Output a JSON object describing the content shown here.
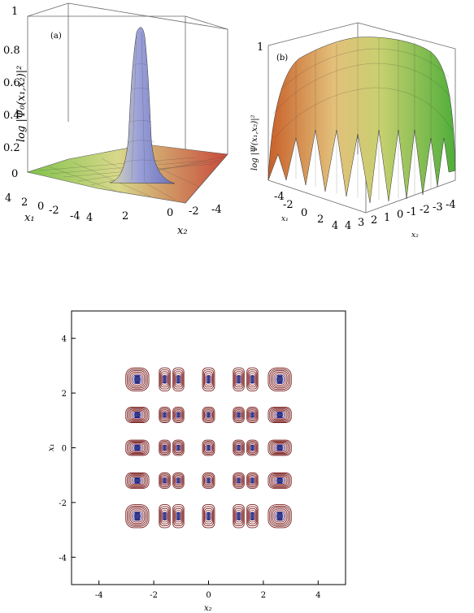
{
  "chart_data": [
    {
      "type": "surface3d",
      "panel_label": "(a)",
      "zlabel": "log |Ψ₀(x₁,x₂)|²",
      "xlabel": "x₁",
      "ylabel": "x₂",
      "ztick_labels": [
        "0",
        "0.2",
        "0.4",
        "0.6",
        "0.8",
        "1"
      ],
      "x1_tick_labels": [
        "4",
        "2",
        "0",
        "-2",
        "-4"
      ],
      "x2_tick_labels": [
        "4",
        "2",
        "0",
        "-2",
        "-4"
      ],
      "zlim": [
        0,
        1
      ],
      "xlim": [
        -4,
        4
      ],
      "ylim": [
        -4,
        4
      ],
      "peak": {
        "x1": 0,
        "x2": 0,
        "z": 0.95
      }
    },
    {
      "type": "surface3d",
      "panel_label": "(b)",
      "zlabel": "log |Ψ(x₁,x₂)|²",
      "xlabel": "x₁",
      "ylabel": "x₂",
      "ztick_labels": [
        "1"
      ],
      "x1_tick_labels": [
        "-4",
        "-2",
        "0",
        "2",
        "4"
      ],
      "x2_tick_labels": [
        "4",
        "3",
        "2",
        "1",
        "0",
        "-1",
        "-2",
        "-3",
        "-4"
      ],
      "zlim": [
        0,
        1
      ]
    },
    {
      "type": "contour",
      "xlabel": "x₂",
      "ylabel": "x₁",
      "xlim": [
        -5,
        5
      ],
      "ylim": [
        -5,
        5
      ],
      "x_ticks": [
        -4,
        -2,
        0,
        2,
        4
      ],
      "y_ticks": [
        -4,
        -2,
        0,
        2,
        4
      ],
      "x_tick_labels": [
        "-4",
        "-2",
        "0",
        "2",
        "4"
      ],
      "y_tick_labels": [
        "-4",
        "-2",
        "0",
        "2",
        "4"
      ],
      "lobe_columns_x2": [
        -2.6,
        -1.6,
        -1.1,
        0,
        1.1,
        1.6,
        2.6
      ],
      "lobe_rows_x1": [
        2.5,
        1.2,
        0,
        -1.2,
        -2.5
      ],
      "colors": {
        "outer": "#7a1f1f",
        "mid": "#a33a3a",
        "inner": "#2b2f9a",
        "core": "#1a1a6e"
      }
    }
  ]
}
